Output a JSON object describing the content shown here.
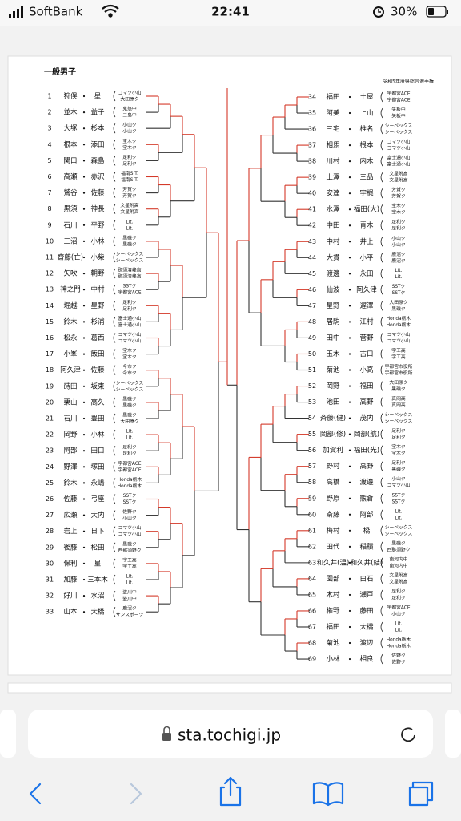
{
  "status_bar": {
    "carrier": "SoftBank",
    "time": "22:41",
    "battery": "30%"
  },
  "document": {
    "title": "一般男子",
    "subtitle": "令和5年度県総合選手権",
    "left": [
      {
        "no": "1",
        "player1": "狩俣",
        "player2": "星",
        "club1": "コマツ小山",
        "club2": "大田原ク"
      },
      {
        "no": "2",
        "player1": "並木",
        "player2": "益子",
        "club1": "鬼怒中",
        "club2": "三島中"
      },
      {
        "no": "3",
        "player1": "大塚",
        "player2": "杉本",
        "club1": "小山ク",
        "club2": "小山ク"
      },
      {
        "no": "4",
        "player1": "根本",
        "player2": "添田",
        "club1": "宝木ク",
        "club2": "宝木ク"
      },
      {
        "no": "5",
        "player1": "関口",
        "player2": "森島",
        "club1": "足利ク",
        "club2": "足利ク"
      },
      {
        "no": "6",
        "player1": "高瀬",
        "player2": "赤沢",
        "club1": "福南S.T.",
        "club2": "福南S.T."
      },
      {
        "no": "7",
        "player1": "鷲谷",
        "player2": "佐藤",
        "club1": "芳賀ク",
        "club2": "芳賀ク"
      },
      {
        "no": "8",
        "player1": "黒須",
        "player2": "神長",
        "club1": "文星附高",
        "club2": "文星附高"
      },
      {
        "no": "9",
        "player1": "石川",
        "player2": "平野",
        "club1": "Lit.",
        "club2": "Lit."
      },
      {
        "no": "10",
        "player1": "三沼",
        "player2": "小林",
        "club1": "黒磯ク",
        "club2": "黒磯ク"
      },
      {
        "no": "11",
        "player1": "齋藤(亡)",
        "player2": "小柴",
        "club1": "シーベックス",
        "club2": "シーベックス"
      },
      {
        "no": "12",
        "player1": "矢吹",
        "player2": "朝野",
        "club1": "那須清峰高",
        "club2": "那須清峰高"
      },
      {
        "no": "13",
        "player1": "神之門",
        "player2": "中村",
        "club1": "SSTク",
        "club2": "宇都宮ACE"
      },
      {
        "no": "14",
        "player1": "堀越",
        "player2": "星野",
        "club1": "足利ク",
        "club2": "足利ク"
      },
      {
        "no": "15",
        "player1": "鈴木",
        "player2": "杉浦",
        "club1": "富士通小山",
        "club2": "富士通小山"
      },
      {
        "no": "16",
        "player1": "松永",
        "player2": "葛西",
        "club1": "コマツ小山",
        "club2": "コマツ小山"
      },
      {
        "no": "17",
        "player1": "小峯",
        "player2": "飯田",
        "club1": "宝木ク",
        "club2": "宝木ク"
      },
      {
        "no": "18",
        "player1": "阿久津",
        "player2": "佐藤",
        "club1": "今市ク",
        "club2": "今市ク"
      },
      {
        "no": "19",
        "player1": "蒔田",
        "player2": "坂東",
        "club1": "シーベックス",
        "club2": "シーベックス"
      },
      {
        "no": "20",
        "player1": "栗山",
        "player2": "高久",
        "club1": "黒磯ク",
        "club2": "黒磯ク"
      },
      {
        "no": "21",
        "player1": "石川",
        "player2": "豊田",
        "club1": "黒磯ク",
        "club2": "大田原ク"
      },
      {
        "no": "22",
        "player1": "岡野",
        "player2": "小林",
        "club1": "Lit.",
        "club2": "Lit."
      },
      {
        "no": "23",
        "player1": "阿部",
        "player2": "田口",
        "club1": "足利ク",
        "club2": "足利ク"
      },
      {
        "no": "24",
        "player1": "野澤",
        "player2": "塚田",
        "club1": "宇都宮ACE",
        "club2": "宇都宮ACE"
      },
      {
        "no": "25",
        "player1": "鈴木",
        "player2": "永嶋",
        "club1": "Honda栃木",
        "club2": "Honda栃木"
      },
      {
        "no": "26",
        "player1": "佐藤",
        "player2": "弓座",
        "club1": "SSTク",
        "club2": "SSTク"
      },
      {
        "no": "27",
        "player1": "広瀬",
        "player2": "大内",
        "club1": "佐野ク",
        "club2": "小山ク"
      },
      {
        "no": "28",
        "player1": "岩上",
        "player2": "日下",
        "club1": "コマツ小山",
        "club2": "コマツ小山"
      },
      {
        "no": "29",
        "player1": "後藤",
        "player2": "松田",
        "club1": "黒磯ク",
        "club2": "西那須野ク"
      },
      {
        "no": "30",
        "player1": "保利",
        "player2": "星",
        "club1": "宇工高",
        "club2": "宇工高"
      },
      {
        "no": "31",
        "player1": "加藤",
        "player2": "三本木",
        "club1": "Lit.",
        "club2": "Lit."
      },
      {
        "no": "32",
        "player1": "好川",
        "player2": "水沼",
        "club1": "姿川中",
        "club2": "姿川中"
      },
      {
        "no": "33",
        "player1": "山本",
        "player2": "大橋",
        "club1": "鹿沼ク",
        "club2": "サンスポーツ"
      }
    ],
    "right": [
      {
        "no": "34",
        "player1": "福田",
        "player2": "土屋",
        "club1": "宇都宮ACE",
        "club2": "宇都宮ACE"
      },
      {
        "no": "35",
        "player1": "阿美",
        "player2": "上山",
        "club1": "矢板中",
        "club2": "矢板中"
      },
      {
        "no": "36",
        "player1": "三宅",
        "player2": "椎名",
        "club1": "シーベックス",
        "club2": "シーベックス"
      },
      {
        "no": "37",
        "player1": "相馬",
        "player2": "根本",
        "club1": "コマツ小山",
        "club2": "コマツ小山"
      },
      {
        "no": "38",
        "player1": "川村",
        "player2": "内木",
        "club1": "富士通小山",
        "club2": "富士通小山"
      },
      {
        "no": "39",
        "player1": "上澤",
        "player2": "三品",
        "club1": "文星附高",
        "club2": "文星附高"
      },
      {
        "no": "40",
        "player1": "安達",
        "player2": "宇梶",
        "club1": "芳賀ク",
        "club2": "芳賀ク"
      },
      {
        "no": "41",
        "player1": "水澤",
        "player2": "福田(大)",
        "club1": "宝木ク",
        "club2": "宝木ク"
      },
      {
        "no": "42",
        "player1": "中田",
        "player2": "青木",
        "club1": "足利ク",
        "club2": "足利ク"
      },
      {
        "no": "43",
        "player1": "中村",
        "player2": "井上",
        "club1": "小山ク",
        "club2": "小山ク"
      },
      {
        "no": "44",
        "player1": "大貫",
        "player2": "小平",
        "club1": "鹿沼ク",
        "club2": "鹿沼ク"
      },
      {
        "no": "45",
        "player1": "渡邊",
        "player2": "永田",
        "club1": "Lit.",
        "club2": "Lit."
      },
      {
        "no": "46",
        "player1": "仙波",
        "player2": "阿久津",
        "club1": "SSTク",
        "club2": "SSTク"
      },
      {
        "no": "47",
        "player1": "星野",
        "player2": "遅澤",
        "club1": "大田原ク",
        "club2": "黒磯ク"
      },
      {
        "no": "48",
        "player1": "居駒",
        "player2": "江村",
        "club1": "Honda栃木",
        "club2": "Honda栃木"
      },
      {
        "no": "49",
        "player1": "田中",
        "player2": "菅野",
        "club1": "コマツ小山",
        "club2": "コマツ小山"
      },
      {
        "no": "50",
        "player1": "玉木",
        "player2": "古口",
        "club1": "宇工高",
        "club2": "宇工高"
      },
      {
        "no": "51",
        "player1": "菊池",
        "player2": "小高",
        "club1": "宇都宮市役所",
        "club2": "宇都宮市役所"
      },
      {
        "no": "52",
        "player1": "岡野",
        "player2": "福田",
        "club1": "大田原ク",
        "club2": "黒磯ク"
      },
      {
        "no": "53",
        "player1": "池田",
        "player2": "高野",
        "club1": "真岡高",
        "club2": "真岡高"
      },
      {
        "no": "54",
        "player1": "斉藤(健)",
        "player2": "茂内",
        "club1": "シーベックス",
        "club2": "シーベックス"
      },
      {
        "no": "55",
        "player1": "岡部(修)",
        "player2": "岡部(航)",
        "club1": "足利ク",
        "club2": "足利ク"
      },
      {
        "no": "56",
        "player1": "加賀利",
        "player2": "福田(光)",
        "club1": "宝木ク",
        "club2": "宝木ク"
      },
      {
        "no": "57",
        "player1": "野村",
        "player2": "高野",
        "club1": "足利ク",
        "club2": "黒磯ク"
      },
      {
        "no": "58",
        "player1": "高橋",
        "player2": "渡邉",
        "club1": "小山ク",
        "club2": "コマツ小山"
      },
      {
        "no": "59",
        "player1": "野原",
        "player2": "熊倉",
        "club1": "SSTク",
        "club2": "SSTク"
      },
      {
        "no": "60",
        "player1": "斎藤",
        "player2": "阿部",
        "club1": "Lit.",
        "club2": "Lit."
      },
      {
        "no": "61",
        "player1": "梅村",
        "player2": "橋",
        "club1": "シーベックス",
        "club2": "シーベックス"
      },
      {
        "no": "62",
        "player1": "田代",
        "player2": "稲積",
        "club1": "黒磯ク",
        "club2": "西那須野ク"
      },
      {
        "no": "63",
        "player1": "和久井(温)",
        "player2": "和久井(結)",
        "club1": "南河内中",
        "club2": "南河内中"
      },
      {
        "no": "64",
        "player1": "園部",
        "player2": "白石",
        "club1": "文星附高",
        "club2": "文星附高"
      },
      {
        "no": "65",
        "player1": "木村",
        "player2": "瀬戸",
        "club1": "足利ク",
        "club2": "足利ク"
      },
      {
        "no": "66",
        "player1": "権野",
        "player2": "藤田",
        "club1": "宇都宮ACE",
        "club2": "小山ク"
      },
      {
        "no": "67",
        "player1": "福田",
        "player2": "大橋",
        "club1": "Lit.",
        "club2": "Lit."
      },
      {
        "no": "68",
        "player1": "菊池",
        "player2": "渡辺",
        "club1": "Honda栃木",
        "club2": "Honda栃木"
      },
      {
        "no": "69",
        "player1": "小林",
        "player2": "相良",
        "club1": "佐野ク",
        "club2": "佐野ク"
      }
    ]
  },
  "browser": {
    "url": "sta.tochigi.jp"
  }
}
